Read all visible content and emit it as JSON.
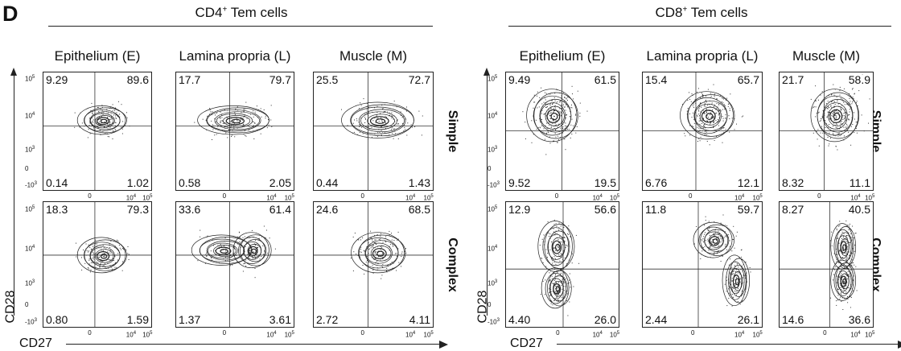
{
  "panel_letter": "D",
  "chart_data": {
    "type": "scatter",
    "subtype": "flow-cytometry contour plots with quadrant percentages",
    "x_axis_label": "CD27",
    "y_axis_label": "CD28",
    "x_ticks": [
      "0",
      "10^4",
      "10^5"
    ],
    "y_ticks": [
      "10^5",
      "10^4",
      "10^3",
      "0",
      "-10^3"
    ],
    "groups": [
      {
        "title": "CD4",
        "title_sup": "+",
        "title_rest": " Tem cells",
        "columns": [
          "Epithelium (E)",
          "Lamina propria (L)",
          "Muscle (M)"
        ],
        "rows": [
          {
            "label": "Simple",
            "quadrants": [
              {
                "ul": "9.29",
                "ur": "89.6",
                "ll": "0.14",
                "lr": "1.02"
              },
              {
                "ul": "17.7",
                "ur": "79.7",
                "ll": "0.58",
                "lr": "2.05"
              },
              {
                "ul": "25.5",
                "ur": "72.7",
                "ll": "0.44",
                "lr": "1.43"
              }
            ]
          },
          {
            "label": "Complex",
            "quadrants": [
              {
                "ul": "18.3",
                "ur": "79.3",
                "ll": "0.80",
                "lr": "1.59"
              },
              {
                "ul": "33.6",
                "ur": "61.4",
                "ll": "1.37",
                "lr": "3.61"
              },
              {
                "ul": "24.6",
                "ur": "68.5",
                "ll": "2.72",
                "lr": "4.11"
              }
            ]
          }
        ]
      },
      {
        "title": "CD8",
        "title_sup": "+",
        "title_rest": " Tem cells",
        "columns": [
          "Epithelium (E)",
          "Lamina propria (L)",
          "Muscle (M)"
        ],
        "rows": [
          {
            "label": "Simple",
            "quadrants": [
              {
                "ul": "9.49",
                "ur": "61.5",
                "ll": "9.52",
                "lr": "19.5"
              },
              {
                "ul": "15.4",
                "ur": "65.7",
                "ll": "6.76",
                "lr": "12.1"
              },
              {
                "ul": "21.7",
                "ur": "58.9",
                "ll": "8.32",
                "lr": "11.1"
              }
            ]
          },
          {
            "label": "Complex",
            "quadrants": [
              {
                "ul": "12.9",
                "ur": "56.6",
                "ll": "4.40",
                "lr": "26.0"
              },
              {
                "ul": "11.8",
                "ur": "59.7",
                "ll": "2.44",
                "lr": "26.1"
              },
              {
                "ul": "8.27",
                "ur": "40.5",
                "ll": "14.6",
                "lr": "36.6"
              }
            ]
          }
        ]
      }
    ]
  }
}
